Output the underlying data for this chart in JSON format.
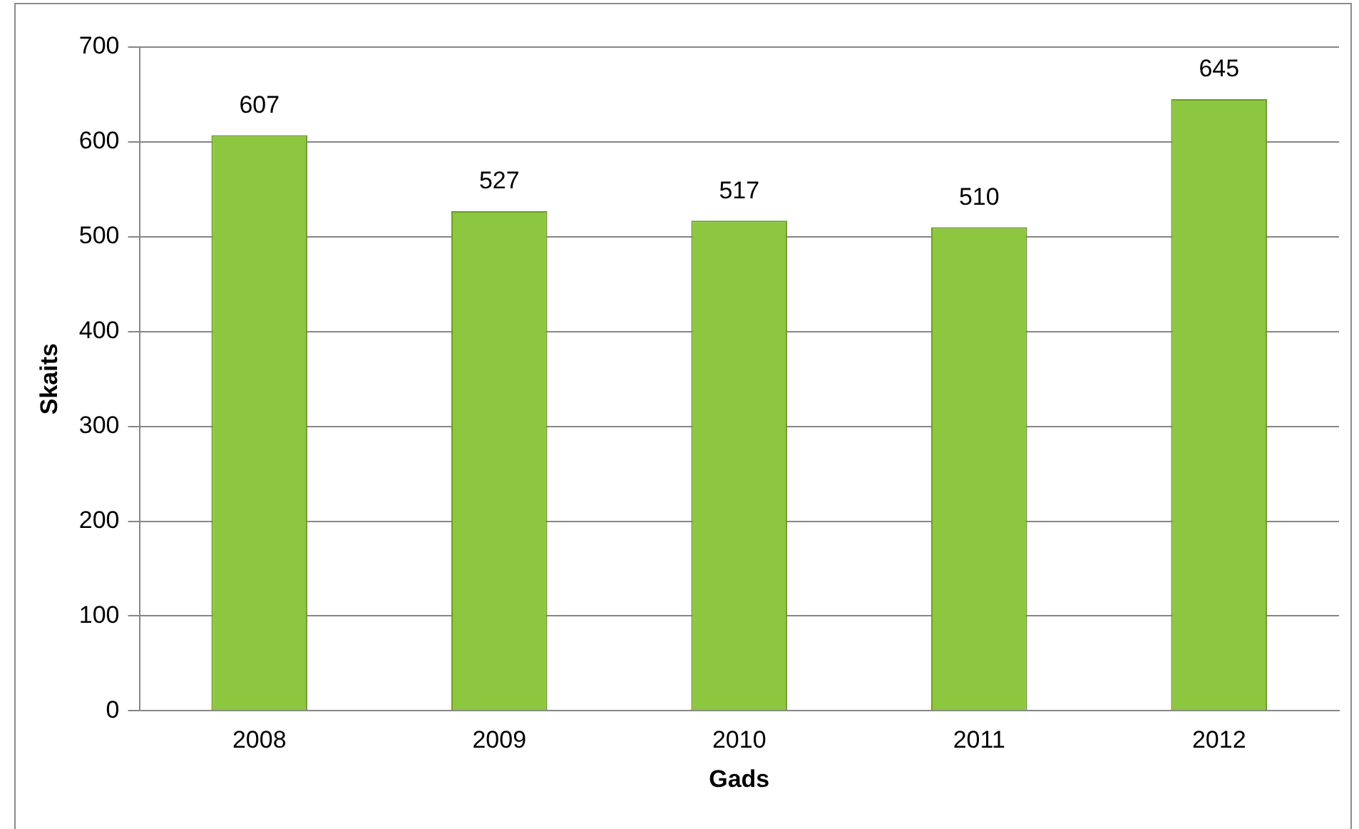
{
  "chart_data": {
    "type": "bar",
    "xlabel": "Gads",
    "ylabel": "Skaits",
    "categories": [
      "2008",
      "2009",
      "2010",
      "2011",
      "2012"
    ],
    "values": [
      607,
      527,
      517,
      510,
      645
    ],
    "color": "#8dc63f",
    "ylim": [
      0,
      700
    ],
    "yticks": [
      0,
      100,
      200,
      300,
      400,
      500,
      600,
      700
    ],
    "grid": "y",
    "data_labels": true
  }
}
